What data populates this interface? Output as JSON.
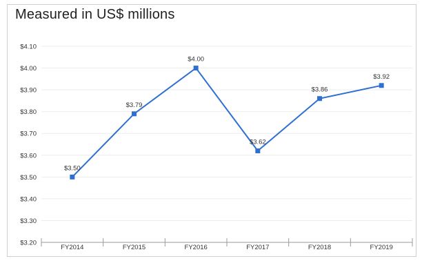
{
  "chart_data": {
    "type": "line",
    "title": "Measured in US$ millions",
    "categories": [
      "FY2014",
      "FY2015",
      "FY2016",
      "FY2017",
      "FY2018",
      "FY2019"
    ],
    "series": [
      {
        "values": [
          3.5,
          3.79,
          4.0,
          3.62,
          3.86,
          3.92
        ],
        "labels": [
          "$3.50",
          "$3.79",
          "$4.00",
          "$3.62",
          "$3.86",
          "$3.92"
        ],
        "color": "#2f6fd0"
      }
    ],
    "yticks": [
      "$3.20",
      "$3.30",
      "$3.40",
      "$3.50",
      "$3.60",
      "$3.70",
      "$3.80",
      "$3.90",
      "$4.00",
      "$4.10"
    ],
    "ylim": [
      3.2,
      4.1
    ],
    "grid": true,
    "legend": "none"
  }
}
